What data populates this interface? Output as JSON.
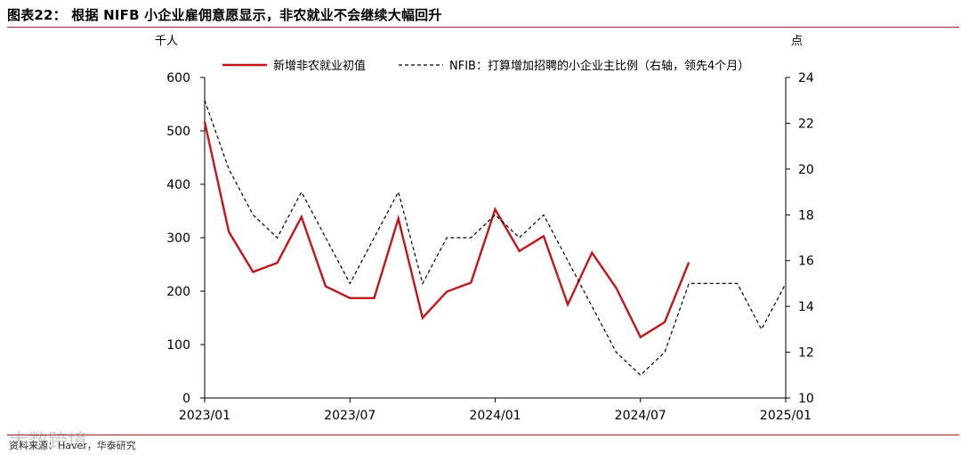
{
  "figure": {
    "title": "图表22：  根据 NIFB 小企业雇佣意愿显示，非农就业不会继续大幅回升",
    "source": "资料来源：Haver，华泰研究",
    "watermark": "大数跨境"
  },
  "chart_data": {
    "type": "line",
    "left_axis": {
      "unit_label": "千人",
      "ylim": [
        0,
        600
      ],
      "ticks": [
        0,
        100,
        200,
        300,
        400,
        500,
        600
      ]
    },
    "right_axis": {
      "unit_label": "点",
      "ylim": [
        10,
        24
      ],
      "ticks": [
        10,
        12,
        14,
        16,
        18,
        20,
        22,
        24
      ]
    },
    "x_ticks": [
      "2023/01",
      "2023/07",
      "2024/01",
      "2024/07",
      "2025/01"
    ],
    "grid": false,
    "legend_position": "top",
    "series": [
      {
        "name": "新增非农就业初值",
        "axis": "left",
        "style": "solid",
        "color": "#c0161c",
        "x": [
          "2023/01",
          "2023/02",
          "2023/03",
          "2023/04",
          "2023/05",
          "2023/06",
          "2023/07",
          "2023/08",
          "2023/09",
          "2023/10",
          "2023/11",
          "2023/12",
          "2024/01",
          "2024/02",
          "2024/03",
          "2024/04",
          "2024/05",
          "2024/06",
          "2024/07",
          "2024/08",
          "2024/09"
        ],
        "values": [
          517,
          311,
          236,
          253,
          339,
          209,
          187,
          187,
          336,
          150,
          199,
          216,
          353,
          275,
          303,
          175,
          272,
          206,
          114,
          142,
          254
        ]
      },
      {
        "name": "NFIB：打算增加招聘的小企业主比例（右轴，领先4个月）",
        "axis": "right",
        "style": "dashed",
        "color": "#000000",
        "x": [
          "2023/01",
          "2023/02",
          "2023/03",
          "2023/04",
          "2023/05",
          "2023/06",
          "2023/07",
          "2023/08",
          "2023/09",
          "2023/10",
          "2023/11",
          "2023/12",
          "2024/01",
          "2024/02",
          "2024/03",
          "2024/04",
          "2024/05",
          "2024/06",
          "2024/07",
          "2024/08",
          "2024/09",
          "2024/10",
          "2024/11",
          "2024/12",
          "2025/01"
        ],
        "values": [
          23,
          20,
          18,
          17,
          19,
          17,
          15,
          17,
          19,
          15,
          17,
          17,
          18,
          17,
          18,
          16,
          14,
          12,
          11,
          12,
          15,
          15,
          15,
          13,
          15
        ]
      }
    ]
  }
}
